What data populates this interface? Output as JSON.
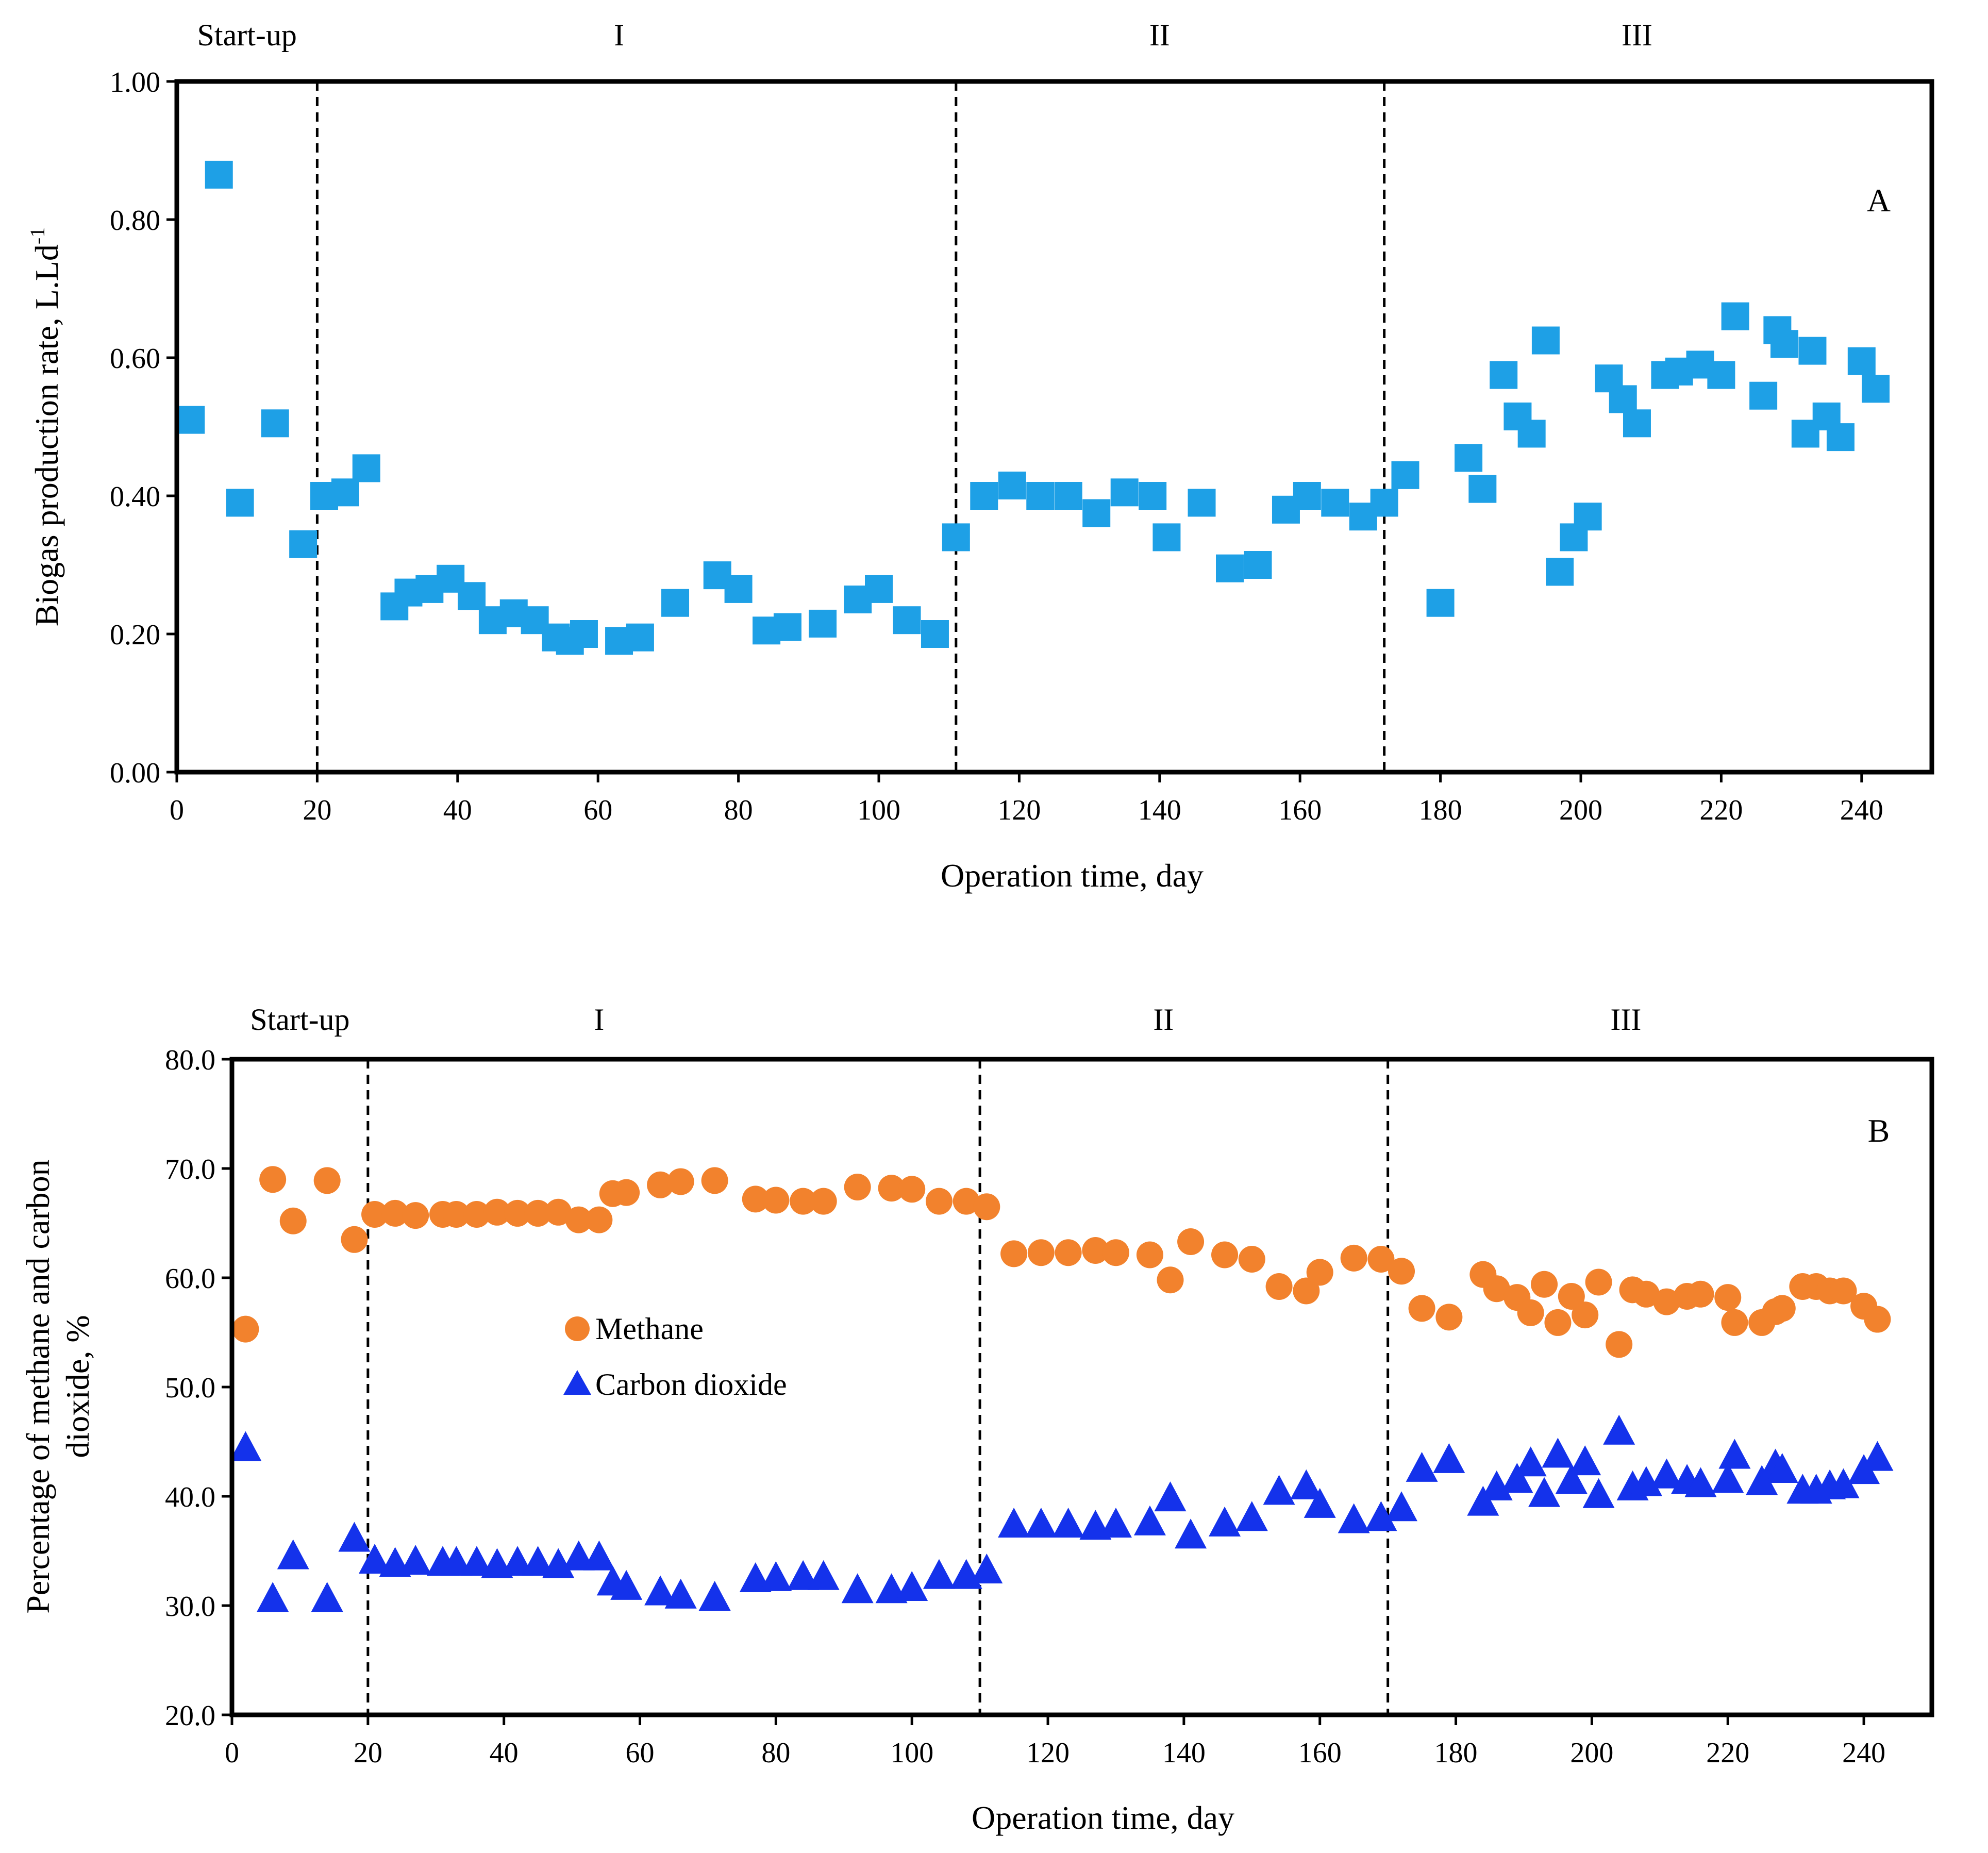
{
  "chart_data": [
    {
      "id": "A",
      "type": "scatter",
      "panel_label": "A",
      "xlabel": "Operation time, day",
      "ylabel": "Biogas production rate, L.Ld",
      "ylabel_superscript": "-1",
      "xlim": [
        0,
        250
      ],
      "ylim": [
        0,
        1.0
      ],
      "xticks": [
        "0",
        "20",
        "40",
        "60",
        "80",
        "100",
        "120",
        "140",
        "160",
        "180",
        "200",
        "220",
        "240"
      ],
      "yticks": [
        "0.00",
        "0.20",
        "0.40",
        "0.60",
        "0.80",
        "1.00"
      ],
      "phases": [
        {
          "label": "Start-up",
          "x": 10
        },
        {
          "label": "I",
          "x": 63
        },
        {
          "label": "II",
          "x": 140
        },
        {
          "label": "III",
          "x": 208
        }
      ],
      "dividers": [
        20,
        111,
        172
      ],
      "series": [
        {
          "name": "Biogas production rate",
          "marker": "square",
          "color": "#1EA0E6",
          "points": [
            [
              2,
              0.51
            ],
            [
              6,
              0.865
            ],
            [
              9,
              0.39
            ],
            [
              14,
              0.505
            ],
            [
              18,
              0.33
            ],
            [
              21,
              0.4
            ],
            [
              24,
              0.405
            ],
            [
              27,
              0.44
            ],
            [
              31,
              0.24
            ],
            [
              33,
              0.26
            ],
            [
              36,
              0.265
            ],
            [
              39,
              0.28
            ],
            [
              42,
              0.255
            ],
            [
              45,
              0.22
            ],
            [
              48,
              0.23
            ],
            [
              51,
              0.22
            ],
            [
              54,
              0.195
            ],
            [
              56,
              0.19
            ],
            [
              58,
              0.2
            ],
            [
              63,
              0.19
            ],
            [
              66,
              0.195
            ],
            [
              71,
              0.245
            ],
            [
              77,
              0.285
            ],
            [
              80,
              0.265
            ],
            [
              84,
              0.205
            ],
            [
              87,
              0.21
            ],
            [
              92,
              0.215
            ],
            [
              97,
              0.25
            ],
            [
              100,
              0.265
            ],
            [
              104,
              0.22
            ],
            [
              108,
              0.2
            ],
            [
              111,
              0.34
            ],
            [
              115,
              0.4
            ],
            [
              119,
              0.415
            ],
            [
              123,
              0.4
            ],
            [
              127,
              0.4
            ],
            [
              131,
              0.375
            ],
            [
              135,
              0.405
            ],
            [
              139,
              0.4
            ],
            [
              141,
              0.34
            ],
            [
              146,
              0.39
            ],
            [
              150,
              0.295
            ],
            [
              154,
              0.3
            ],
            [
              158,
              0.38
            ],
            [
              161,
              0.4
            ],
            [
              165,
              0.39
            ],
            [
              169,
              0.37
            ],
            [
              172,
              0.39
            ],
            [
              175,
              0.43
            ],
            [
              180,
              0.245
            ],
            [
              184,
              0.455
            ],
            [
              186,
              0.41
            ],
            [
              189,
              0.575
            ],
            [
              191,
              0.515
            ],
            [
              193,
              0.49
            ],
            [
              195,
              0.625
            ],
            [
              197,
              0.29
            ],
            [
              199,
              0.34
            ],
            [
              201,
              0.37
            ],
            [
              204,
              0.57
            ],
            [
              206,
              0.54
            ],
            [
              208,
              0.505
            ],
            [
              212,
              0.575
            ],
            [
              214,
              0.58
            ],
            [
              217,
              0.59
            ],
            [
              220,
              0.575
            ],
            [
              222,
              0.66
            ],
            [
              226,
              0.545
            ],
            [
              228,
              0.64
            ],
            [
              229,
              0.62
            ],
            [
              233,
              0.61
            ],
            [
              232,
              0.49
            ],
            [
              235,
              0.515
            ],
            [
              237,
              0.485
            ],
            [
              240,
              0.595
            ],
            [
              242,
              0.555
            ]
          ]
        }
      ]
    },
    {
      "id": "B",
      "type": "scatter",
      "panel_label": "B",
      "xlabel": "Operation time, day",
      "ylabel_line1": "Percentage of methane and carbon",
      "ylabel_line2": "dioxide, %",
      "xlim": [
        0,
        250
      ],
      "ylim": [
        20,
        80
      ],
      "xticks": [
        "0",
        "20",
        "40",
        "60",
        "80",
        "100",
        "120",
        "140",
        "160",
        "180",
        "200",
        "220",
        "240"
      ],
      "yticks": [
        "20.0",
        "30.0",
        "40.0",
        "50.0",
        "60.0",
        "70.0",
        "80.0"
      ],
      "phases": [
        {
          "label": "Start-up",
          "x": 10
        },
        {
          "label": "I",
          "x": 54
        },
        {
          "label": "II",
          "x": 137
        },
        {
          "label": "III",
          "x": 205
        }
      ],
      "dividers": [
        20,
        110,
        170
      ],
      "legend": {
        "position": "center-left"
      },
      "series": [
        {
          "name": "Methane",
          "marker": "circle",
          "color": "#F2822D",
          "points": [
            [
              2,
              55.3
            ],
            [
              6,
              69.0
            ],
            [
              9,
              65.2
            ],
            [
              14,
              68.9
            ],
            [
              18,
              63.5
            ],
            [
              21,
              65.8
            ],
            [
              24,
              65.9
            ],
            [
              27,
              65.7
            ],
            [
              31,
              65.8
            ],
            [
              33,
              65.8
            ],
            [
              36,
              65.8
            ],
            [
              39,
              66.0
            ],
            [
              42,
              65.9
            ],
            [
              45,
              65.9
            ],
            [
              48,
              66.0
            ],
            [
              51,
              65.3
            ],
            [
              54,
              65.3
            ],
            [
              56,
              67.7
            ],
            [
              58,
              67.8
            ],
            [
              63,
              68.5
            ],
            [
              66,
              68.8
            ],
            [
              71,
              68.9
            ],
            [
              77,
              67.2
            ],
            [
              80,
              67.1
            ],
            [
              84,
              67.0
            ],
            [
              87,
              67.0
            ],
            [
              92,
              68.3
            ],
            [
              97,
              68.2
            ],
            [
              100,
              68.1
            ],
            [
              104,
              67.0
            ],
            [
              108,
              67.0
            ],
            [
              111,
              66.5
            ],
            [
              115,
              62.2
            ],
            [
              119,
              62.3
            ],
            [
              123,
              62.3
            ],
            [
              127,
              62.5
            ],
            [
              130,
              62.3
            ],
            [
              135,
              62.1
            ],
            [
              138,
              59.8
            ],
            [
              141,
              63.3
            ],
            [
              146,
              62.1
            ],
            [
              150,
              61.7
            ],
            [
              154,
              59.2
            ],
            [
              158,
              58.8
            ],
            [
              160,
              60.5
            ],
            [
              165,
              61.8
            ],
            [
              169,
              61.7
            ],
            [
              172,
              60.6
            ],
            [
              175,
              57.2
            ],
            [
              179,
              56.4
            ],
            [
              184,
              60.3
            ],
            [
              186,
              59.0
            ],
            [
              189,
              58.2
            ],
            [
              191,
              56.8
            ],
            [
              193,
              59.4
            ],
            [
              195,
              55.9
            ],
            [
              197,
              58.3
            ],
            [
              199,
              56.6
            ],
            [
              201,
              59.6
            ],
            [
              204,
              53.9
            ],
            [
              206,
              58.9
            ],
            [
              208,
              58.5
            ],
            [
              211,
              57.8
            ],
            [
              214,
              58.3
            ],
            [
              216,
              58.5
            ],
            [
              220,
              58.2
            ],
            [
              221,
              55.9
            ],
            [
              225,
              55.9
            ],
            [
              227,
              56.9
            ],
            [
              228,
              57.2
            ],
            [
              231,
              59.2
            ],
            [
              233,
              59.2
            ],
            [
              235,
              58.8
            ],
            [
              237,
              58.8
            ],
            [
              240,
              57.4
            ],
            [
              242,
              56.2
            ]
          ]
        },
        {
          "name": "Carbon dioxide",
          "marker": "triangle",
          "color": "#1432EB",
          "points": [
            [
              2,
              44.5
            ],
            [
              6,
              30.7
            ],
            [
              9,
              34.6
            ],
            [
              14,
              30.7
            ],
            [
              18,
              36.2
            ],
            [
              21,
              34.2
            ],
            [
              24,
              33.9
            ],
            [
              27,
              34.1
            ],
            [
              31,
              34.0
            ],
            [
              33,
              34.0
            ],
            [
              36,
              34.0
            ],
            [
              39,
              33.8
            ],
            [
              42,
              34.0
            ],
            [
              45,
              34.0
            ],
            [
              48,
              33.8
            ],
            [
              51,
              34.5
            ],
            [
              54,
              34.5
            ],
            [
              56,
              32.2
            ],
            [
              58,
              31.8
            ],
            [
              63,
              31.3
            ],
            [
              66,
              31.0
            ],
            [
              71,
              30.8
            ],
            [
              77,
              32.5
            ],
            [
              80,
              32.6
            ],
            [
              84,
              32.7
            ],
            [
              87,
              32.7
            ],
            [
              92,
              31.5
            ],
            [
              97,
              31.5
            ],
            [
              100,
              31.7
            ],
            [
              104,
              32.8
            ],
            [
              108,
              32.8
            ],
            [
              111,
              33.3
            ],
            [
              115,
              37.5
            ],
            [
              119,
              37.5
            ],
            [
              123,
              37.5
            ],
            [
              127,
              37.3
            ],
            [
              130,
              37.5
            ],
            [
              135,
              37.7
            ],
            [
              138,
              39.9
            ],
            [
              141,
              36.5
            ],
            [
              146,
              37.6
            ],
            [
              150,
              38.1
            ],
            [
              154,
              40.5
            ],
            [
              158,
              41.0
            ],
            [
              160,
              39.3
            ],
            [
              165,
              37.9
            ],
            [
              169,
              38.1
            ],
            [
              172,
              39.0
            ],
            [
              175,
              42.6
            ],
            [
              179,
              43.4
            ],
            [
              184,
              39.5
            ],
            [
              186,
              40.9
            ],
            [
              189,
              41.6
            ],
            [
              191,
              43.1
            ],
            [
              193,
              40.3
            ],
            [
              195,
              43.9
            ],
            [
              197,
              41.5
            ],
            [
              199,
              43.2
            ],
            [
              201,
              40.2
            ],
            [
              204,
              46.0
            ],
            [
              206,
              40.9
            ],
            [
              208,
              41.3
            ],
            [
              211,
              42.0
            ],
            [
              214,
              41.5
            ],
            [
              216,
              41.2
            ],
            [
              220,
              41.6
            ],
            [
              221,
              43.8
            ],
            [
              225,
              41.4
            ],
            [
              227,
              42.9
            ],
            [
              228,
              42.5
            ],
            [
              231,
              40.6
            ],
            [
              233,
              40.6
            ],
            [
              235,
              41.0
            ],
            [
              237,
              41.1
            ],
            [
              240,
              42.4
            ],
            [
              242,
              43.6
            ]
          ]
        }
      ]
    }
  ]
}
